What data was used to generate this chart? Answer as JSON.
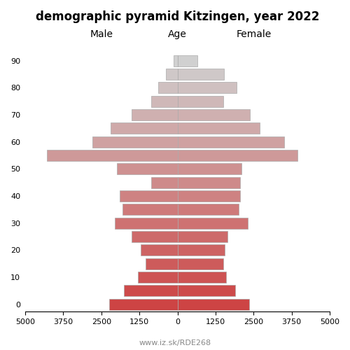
{
  "title": "demographic pyramid Kitzingen, year 2022",
  "male_label": "Male",
  "female_label": "Female",
  "age_label": "Age",
  "footer": "www.iz.sk/RDE268",
  "age_groups": [
    0,
    5,
    10,
    15,
    20,
    25,
    30,
    35,
    40,
    45,
    50,
    55,
    60,
    65,
    70,
    75,
    80,
    85,
    90
  ],
  "male_values": [
    2250,
    1750,
    1300,
    1050,
    1200,
    1500,
    2050,
    1800,
    1900,
    870,
    2000,
    4300,
    2800,
    2200,
    1500,
    870,
    630,
    370,
    130
  ],
  "female_values": [
    2350,
    1900,
    1600,
    1500,
    1550,
    1650,
    2300,
    2000,
    2050,
    2050,
    2100,
    3950,
    3500,
    2700,
    2380,
    1500,
    1950,
    1530,
    650
  ],
  "xlim": 5000,
  "bar_height": 0.82,
  "background_color": "#ffffff",
  "bar_colors": [
    "#cd4444",
    "#cc3e3e",
    "#cb3838",
    "#ca3232",
    "#c92c2c",
    "#c82626",
    "#b8505a",
    "#b06070",
    "#a87080",
    "#a87080",
    "#b07888",
    "#b87890",
    "#c07898",
    "#c07898",
    "#c090a0",
    "#c0a0a8",
    "#c8b0b0",
    "#c8c0c0",
    "#d0d0d0"
  ],
  "edge_color": "#aaaaaa",
  "title_fontsize": 12,
  "label_fontsize": 10,
  "tick_fontsize": 8,
  "footer_fontsize": 8,
  "footer_color": "#888888"
}
